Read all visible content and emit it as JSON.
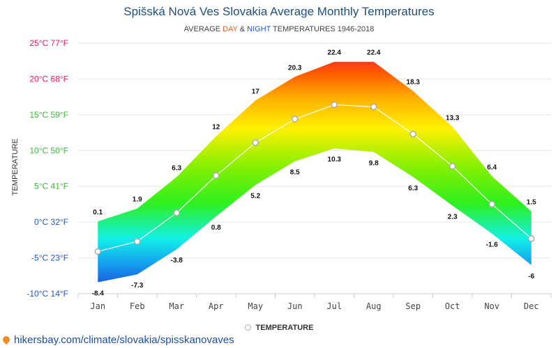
{
  "header": {
    "title": "Spišská Nová Ves Slovakia Average Monthly Temperatures",
    "subtitle_parts": {
      "pre": "AVERAGE ",
      "day": "DAY",
      "amp": " & ",
      "night": "NIGHT",
      "post": " TEMPERATURES 1946-2018"
    }
  },
  "legend": {
    "label": "TEMPERATURE"
  },
  "footer": {
    "url": "hikersbay.com/climate/slovakia/spisskanovaves",
    "icon": "location-pin-icon"
  },
  "colors": {
    "title": "#1f4e79",
    "day": "#e8601c",
    "night": "#2255cc",
    "axis_label_warm": "#e8195a",
    "axis_label_mild": "#3cb83c",
    "axis_label_cold": "#2255cc",
    "temperature_line": "#ffffff",
    "marker_edge": "#aaaaaa"
  },
  "chart_data": {
    "type": "area",
    "ylabel": "TEMPERATURE",
    "ylim": [
      -10,
      25
    ],
    "grid": true,
    "legend_position": "bottom",
    "y_ticks": [
      {
        "value": 25,
        "label": "25°C 77°F"
      },
      {
        "value": 20,
        "label": "20°C 68°F"
      },
      {
        "value": 15,
        "label": "15°C 59°F"
      },
      {
        "value": 10,
        "label": "10°C 50°F"
      },
      {
        "value": 5,
        "label": "5°C 41°F"
      },
      {
        "value": 0,
        "label": "0°C 32°F"
      },
      {
        "value": -5,
        "label": "-5°C 23°F"
      },
      {
        "value": -10,
        "label": "-10°C 14°F"
      }
    ],
    "categories": [
      "Jan",
      "Feb",
      "Mar",
      "Apr",
      "May",
      "Jun",
      "Jul",
      "Aug",
      "Sep",
      "Oct",
      "Nov",
      "Dec"
    ],
    "day_values": [
      0.1,
      1.9,
      6.3,
      12,
      17,
      20.3,
      22.4,
      22.4,
      18.3,
      13.3,
      6.4,
      1.5
    ],
    "night_values": [
      -8.4,
      -7.3,
      -3.8,
      0.8,
      5.2,
      8.5,
      10.3,
      9.8,
      6.3,
      2.3,
      -1.6,
      -6
    ],
    "series": [
      {
        "name": "TEMPERATURE",
        "values": [
          -4.1,
          -2.7,
          1.3,
          6.5,
          11.1,
          14.4,
          16.4,
          16.1,
          12.3,
          7.8,
          2.5,
          -2.3
        ]
      }
    ]
  }
}
